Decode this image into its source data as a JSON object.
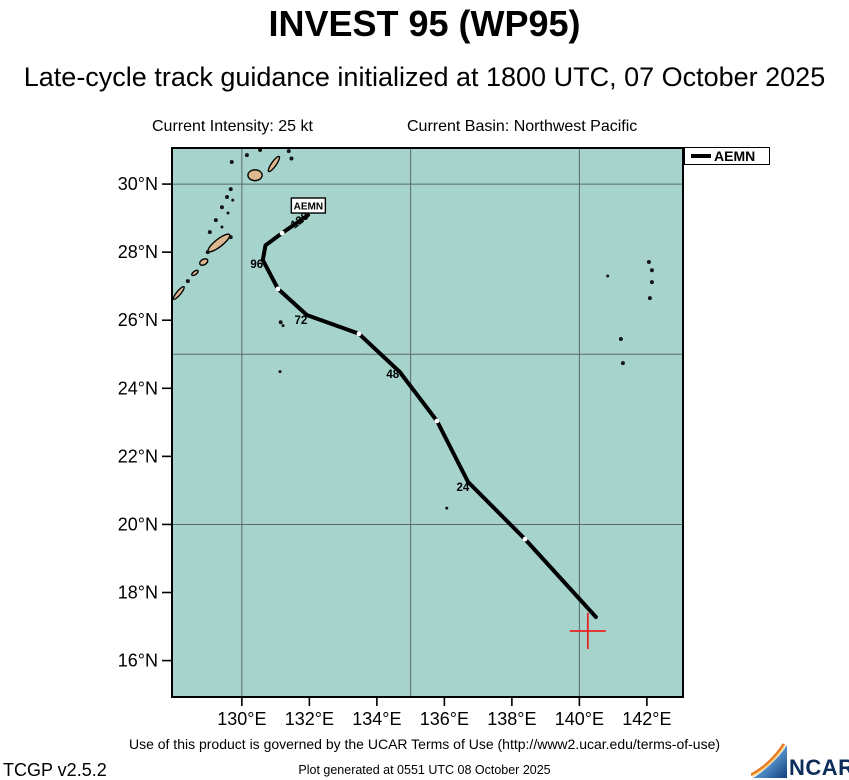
{
  "header": {
    "title": "INVEST 95 (WP95)",
    "subtitle": "Late-cycle track guidance initialized at 1800 UTC, 07 October 2025",
    "intensity": "Current Intensity: 25 kt",
    "basin": "Current Basin: Northwest Pacific"
  },
  "legend": {
    "entries": [
      {
        "label": "AEMN",
        "color": "#000000"
      }
    ]
  },
  "footer": {
    "terms": "Use of this product is governed by the UCAR Terms of Use (http://www2.ucar.edu/terms-of-use)",
    "version": "TCGP v2.5.2",
    "generated": "Plot generated at 0551 UTC   08 October 2025",
    "logo_text": "NCAR"
  },
  "chart_data": {
    "type": "line",
    "title": "INVEST 95 (WP95)",
    "xlabel": "Longitude (deg E)",
    "ylabel": "Latitude (deg N)",
    "x_ticks": [
      130,
      132,
      134,
      136,
      138,
      140,
      142
    ],
    "x_tick_labels": [
      "130°E",
      "132°E",
      "134°E",
      "136°E",
      "138°E",
      "140°E",
      "142°E"
    ],
    "y_ticks": [
      30,
      28,
      26,
      24,
      22,
      20,
      18,
      16
    ],
    "y_tick_labels": [
      "30°N",
      "28°N",
      "26°N",
      "24°N",
      "22°N",
      "20°N",
      "18°N",
      "16°N"
    ],
    "lon_range": [
      127.93,
      143.07
    ],
    "lat_range": [
      14.93,
      31.06
    ],
    "grid_lons": [
      130,
      135,
      140
    ],
    "grid_lats": [
      20,
      25,
      30
    ],
    "colors": {
      "sea": "#a6d4cc",
      "land": "#ddb88f",
      "grid": "#5a6a6a",
      "track": "#000000",
      "start_marker": "#e62222"
    },
    "series": [
      {
        "name": "AEMN",
        "color": "#000000",
        "points": [
          {
            "hr": 0,
            "lon": 140.49,
            "lat": 17.28
          },
          {
            "hr": 12,
            "lon": 138.39,
            "lat": 19.57,
            "dot": true
          },
          {
            "hr": 24,
            "lon": 136.7,
            "lat": 21.25
          },
          {
            "hr": 36,
            "lon": 135.78,
            "lat": 23.04,
            "dot": true
          },
          {
            "hr": 48,
            "lon": 134.68,
            "lat": 24.48
          },
          {
            "hr": 60,
            "lon": 133.47,
            "lat": 25.6,
            "dot": true
          },
          {
            "hr": 72,
            "lon": 131.93,
            "lat": 26.15
          },
          {
            "hr": 84,
            "lon": 131.07,
            "lat": 26.92,
            "dot": true
          },
          {
            "hr": 96,
            "lon": 130.62,
            "lat": 27.77
          },
          {
            "hr": null,
            "lon": 130.7,
            "lat": 28.2
          },
          {
            "hr": 108,
            "lon": 131.19,
            "lat": 28.56,
            "dot": true
          },
          {
            "hr": 120,
            "lon": 131.96,
            "lat": 29.09
          }
        ]
      }
    ],
    "hour_labels": [
      {
        "text": "24",
        "lon": 136.55,
        "lat": 20.98,
        "rot": 0
      },
      {
        "text": "48",
        "lon": 134.47,
        "lat": 24.3,
        "rot": 0
      },
      {
        "text": "72",
        "lon": 131.75,
        "lat": 25.89,
        "rot": 0
      },
      {
        "text": "96",
        "lon": 130.44,
        "lat": 27.53,
        "rot": 0
      },
      {
        "text": "120",
        "lon": 131.78,
        "lat": 28.85,
        "rot": -38
      }
    ],
    "track_label": {
      "text": "AEMN",
      "lon": 131.97,
      "lat": 29.37
    },
    "start_marker": {
      "lon": 140.25,
      "lat": 16.87
    },
    "islands": {
      "ellipses": [
        [
          130.39,
          30.26,
          0.21,
          0.16,
          0
        ],
        [
          130.95,
          30.59,
          0.27,
          0.07,
          -55
        ],
        [
          129.32,
          28.27,
          0.4,
          0.11,
          -38
        ],
        [
          128.87,
          27.71,
          0.13,
          0.08,
          -30
        ],
        [
          128.61,
          27.39,
          0.11,
          0.05,
          -35
        ],
        [
          128.13,
          26.8,
          0.24,
          0.06,
          -50
        ]
      ],
      "specks": [
        [
          130.15,
          30.85,
          2
        ],
        [
          129.7,
          30.65,
          2
        ],
        [
          131.39,
          30.97,
          2
        ],
        [
          131.47,
          30.75,
          2
        ],
        [
          130.54,
          31.0,
          2
        ],
        [
          129.67,
          29.85,
          2
        ],
        [
          129.56,
          29.62,
          2
        ],
        [
          129.73,
          29.53,
          1.5
        ],
        [
          129.41,
          29.32,
          2
        ],
        [
          129.59,
          29.15,
          1.5
        ],
        [
          129.23,
          28.94,
          2
        ],
        [
          129.41,
          28.74,
          1.5
        ],
        [
          129.05,
          28.59,
          2
        ],
        [
          129.67,
          28.44,
          2
        ],
        [
          128.99,
          28.0,
          2
        ],
        [
          128.4,
          27.15,
          2
        ],
        [
          131.15,
          25.94,
          2
        ],
        [
          131.22,
          25.84,
          1.5
        ],
        [
          131.13,
          24.49,
          1.5
        ],
        [
          136.07,
          20.48,
          1.5
        ],
        [
          142.06,
          27.71,
          2
        ],
        [
          142.15,
          27.47,
          2
        ],
        [
          142.15,
          27.12,
          2
        ],
        [
          142.09,
          26.65,
          2
        ],
        [
          140.84,
          27.3,
          1.5
        ],
        [
          141.23,
          25.45,
          2
        ],
        [
          141.29,
          24.74,
          2
        ]
      ]
    }
  }
}
